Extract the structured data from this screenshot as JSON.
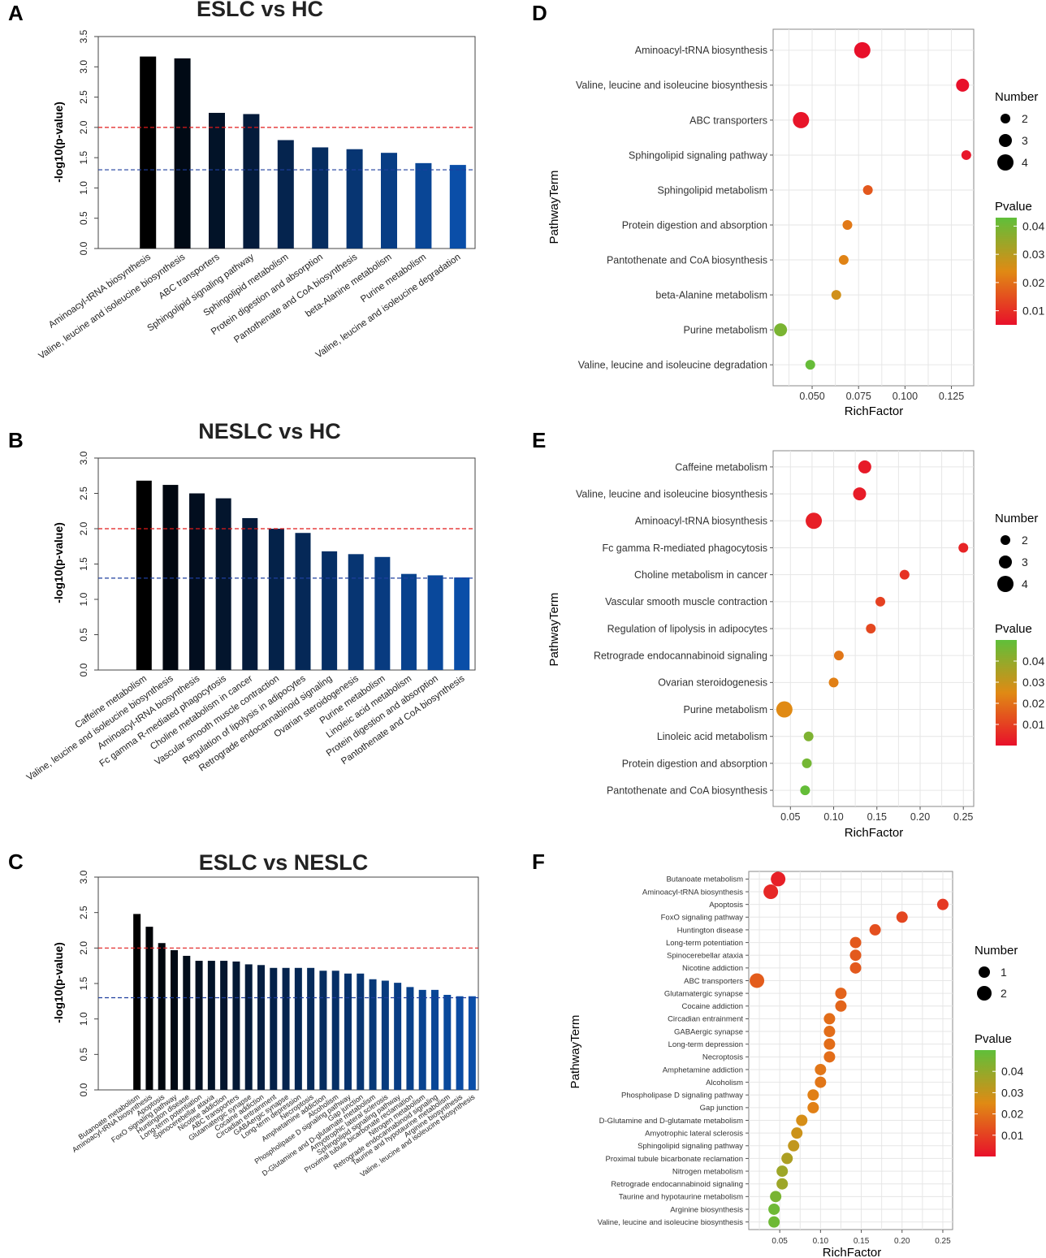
{
  "panels": [
    {
      "letter": "A",
      "chart_data": {
        "type": "bar",
        "title": "ESLC vs HC",
        "ylabel": "-log10(p-value)",
        "xlabel": "",
        "ylim": [
          0,
          3.5
        ],
        "yticks": [
          "0.0",
          "0.5",
          "1.0",
          "1.5",
          "2.0",
          "2.5",
          "3.0",
          "3.5"
        ],
        "threshold_lines": [
          {
            "value": 2.0,
            "color": "#e01b1b"
          },
          {
            "value": 1.3,
            "color": "#1f3f9e"
          }
        ],
        "categories": [
          "Aminoacyl-tRNA biosynthesis",
          "Valine, leucine and isoleucine biosynthesis",
          "ABC transporters",
          "Sphingolipid signaling pathway",
          "Sphingolipid metabolism",
          "Protein digestion and absorption",
          "Pantothenate and CoA biosynthesis",
          "beta-Alanine metabolism",
          "Purine metabolism",
          "Valine, leucine and isoleucine degradation"
        ],
        "values": [
          3.17,
          3.14,
          2.24,
          2.22,
          1.79,
          1.67,
          1.64,
          1.58,
          1.41,
          1.38
        ]
      }
    },
    {
      "letter": "B",
      "chart_data": {
        "type": "bar",
        "title": "NESLC vs HC",
        "ylabel": "-log10(p-value)",
        "xlabel": "",
        "ylim": [
          0,
          3.0
        ],
        "yticks": [
          "0.0",
          "0.5",
          "1.0",
          "1.5",
          "2.0",
          "2.5",
          "3.0"
        ],
        "threshold_lines": [
          {
            "value": 2.0,
            "color": "#e01b1b"
          },
          {
            "value": 1.3,
            "color": "#1f3f9e"
          }
        ],
        "categories": [
          "Caffeine metabolism",
          "Valine, leucine and isoleucine biosynthesis",
          "Aminoacyl-tRNA biosynthesis",
          "Fc gamma R-mediated phagocytosis",
          "Choline metabolism in cancer",
          "Vascular smooth muscle contraction",
          "Regulation of lipolysis in adipocytes",
          "Retrograde endocannabinoid signaling",
          "Ovarian steroidogenesis",
          "Purine metabolism",
          "Linoleic acid metabolism",
          "Protein digestion and absorption",
          "Pantothenate and CoA biosynthesis"
        ],
        "values": [
          2.68,
          2.62,
          2.5,
          2.43,
          2.15,
          2.0,
          1.94,
          1.68,
          1.64,
          1.6,
          1.36,
          1.34,
          1.31
        ]
      }
    },
    {
      "letter": "C",
      "chart_data": {
        "type": "bar",
        "title": "ESLC vs NESLC",
        "ylabel": "-log10(p-value)",
        "xlabel": "",
        "ylim": [
          0,
          3.0
        ],
        "yticks": [
          "0.0",
          "0.5",
          "1.0",
          "1.5",
          "2.0",
          "2.5",
          "3.0"
        ],
        "threshold_lines": [
          {
            "value": 2.0,
            "color": "#e01b1b"
          },
          {
            "value": 1.3,
            "color": "#1f3f9e"
          }
        ],
        "categories": [
          "Butanoate metabolism",
          "Aminoacyl-tRNA biosynthesis",
          "Apoptosis",
          "FoxO signaling pathway",
          "Huntington disease",
          "Long-term potentiation",
          "Spinocerebellar ataxia",
          "Nicotine addiction",
          "ABC transporters",
          "Glutamatergic synapse",
          "Cocaine addiction",
          "Circadian entrainment",
          "GABAergic synapse",
          "Long-term depression",
          "Necroptosis",
          "Amphetamine addiction",
          "Alcoholism",
          "Phospholipase D signaling pathway",
          "Gap junction",
          "D-Glutamine and D-glutamate metabolism",
          "Amyotrophic lateral sclerosis",
          "Sphingolipid signaling pathway",
          "Proximal tubule bicarbonate reclamation",
          "Nitrogen metabolism",
          "Retrograde endocannabinoid signaling",
          "Taurine and hypotaurine metabolism",
          "Arginine biosynthesis",
          "Valine, leucine and isoleucine biosynthesis"
        ],
        "values": [
          2.48,
          2.3,
          2.07,
          1.97,
          1.89,
          1.82,
          1.82,
          1.82,
          1.81,
          1.77,
          1.76,
          1.72,
          1.72,
          1.72,
          1.72,
          1.68,
          1.68,
          1.64,
          1.64,
          1.56,
          1.54,
          1.51,
          1.45,
          1.41,
          1.41,
          1.34,
          1.32,
          1.32
        ]
      }
    },
    {
      "letter": "D",
      "chart_data": {
        "type": "scatter",
        "xlabel": "RichFactor",
        "ylabel": "PathwayTerm",
        "xlim": [
          0.029,
          0.137
        ],
        "xticks": [
          0.05,
          0.075,
          0.1,
          0.125
        ],
        "xtick_labels": [
          "0.050",
          "0.075",
          "0.100",
          "0.125"
        ],
        "legend_size_title": "Number",
        "size_legend": [
          2,
          3,
          4
        ],
        "legend_color_title": "Pvalue",
        "pvalue_range": [
          0.005,
          0.043
        ],
        "color_ticks": [
          {
            "v": 0.04,
            "label": "0.04"
          },
          {
            "v": 0.03,
            "label": "0.03"
          },
          {
            "v": 0.02,
            "label": "0.02"
          },
          {
            "v": 0.01,
            "label": "0.01"
          }
        ],
        "terms": [
          "Aminoacyl-tRNA biosynthesis",
          "Valine, leucine and isoleucine biosynthesis",
          "ABC transporters",
          "Sphingolipid signaling pathway",
          "Sphingolipid metabolism",
          "Protein digestion and absorption",
          "Pantothenate and CoA biosynthesis",
          "beta-Alanine metabolism",
          "Purine metabolism",
          "Valine, leucine and isoleucine degradation"
        ],
        "richfactor": [
          0.077,
          0.131,
          0.044,
          0.133,
          0.08,
          0.069,
          0.067,
          0.063,
          0.033,
          0.049
        ],
        "number": [
          4,
          3,
          4,
          2,
          2,
          2,
          2,
          2,
          3,
          2
        ],
        "pvalue": [
          0.0007,
          0.0007,
          0.0058,
          0.006,
          0.0162,
          0.0214,
          0.0229,
          0.0263,
          0.039,
          0.042
        ]
      }
    },
    {
      "letter": "E",
      "chart_data": {
        "type": "scatter",
        "xlabel": "RichFactor",
        "ylabel": "PathwayTerm",
        "xlim": [
          0.03,
          0.262
        ],
        "xticks": [
          0.05,
          0.1,
          0.15,
          0.2,
          0.25
        ],
        "xtick_labels": [
          "0.05",
          "0.10",
          "0.15",
          "0.20",
          "0.25"
        ],
        "legend_size_title": "Number",
        "size_legend": [
          2,
          3,
          4
        ],
        "legend_color_title": "Pvalue",
        "pvalue_range": [
          0.0,
          0.05
        ],
        "color_ticks": [
          {
            "v": 0.04,
            "label": "0.04"
          },
          {
            "v": 0.03,
            "label": "0.03"
          },
          {
            "v": 0.02,
            "label": "0.02"
          },
          {
            "v": 0.01,
            "label": "0.01"
          }
        ],
        "terms": [
          "Caffeine metabolism",
          "Valine, leucine and isoleucine biosynthesis",
          "Aminoacyl-tRNA biosynthesis",
          "Fc gamma R-mediated phagocytosis",
          "Choline metabolism in cancer",
          "Vascular smooth muscle contraction",
          "Regulation of lipolysis in adipocytes",
          "Retrograde endocannabinoid signaling",
          "Ovarian steroidogenesis",
          "Purine metabolism",
          "Linoleic acid metabolism",
          "Protein digestion and absorption",
          "Pantothenate and CoA biosynthesis"
        ],
        "richfactor": [
          0.136,
          0.13,
          0.077,
          0.25,
          0.182,
          0.154,
          0.143,
          0.106,
          0.1,
          0.043,
          0.071,
          0.069,
          0.067
        ],
        "number": [
          3,
          3,
          4,
          2,
          2,
          2,
          2,
          2,
          2,
          4,
          2,
          2,
          2
        ],
        "pvalue": [
          0.002,
          0.0025,
          0.003,
          0.004,
          0.007,
          0.01,
          0.0115,
          0.021,
          0.023,
          0.025,
          0.044,
          0.046,
          0.049
        ]
      }
    },
    {
      "letter": "F",
      "chart_data": {
        "type": "scatter",
        "xlabel": "RichFactor",
        "ylabel": "PathwayTerm",
        "xlim": [
          0.012,
          0.262
        ],
        "xticks": [
          0.05,
          0.1,
          0.15,
          0.2,
          0.25
        ],
        "xtick_labels": [
          "0.05",
          "0.10",
          "0.15",
          "0.20",
          "0.25"
        ],
        "legend_size_title": "Number",
        "size_legend": [
          1,
          2
        ],
        "legend_color_title": "Pvalue",
        "pvalue_range": [
          0.0,
          0.05
        ],
        "color_ticks": [
          {
            "v": 0.04,
            "label": "0.04"
          },
          {
            "v": 0.03,
            "label": "0.03"
          },
          {
            "v": 0.02,
            "label": "0.02"
          },
          {
            "v": 0.01,
            "label": "0.01"
          }
        ],
        "terms": [
          "Butanoate metabolism",
          "Aminoacyl-tRNA biosynthesis",
          "Apoptosis",
          "FoxO signaling pathway",
          "Huntington disease",
          "Long-term potentiation",
          "Spinocerebellar ataxia",
          "Nicotine addiction",
          "ABC transporters",
          "Glutamatergic synapse",
          "Cocaine addiction",
          "Circadian entrainment",
          "GABAergic synapse",
          "Long-term depression",
          "Necroptosis",
          "Amphetamine addiction",
          "Alcoholism",
          "Phospholipase D signaling pathway",
          "Gap junction",
          "D-Glutamine and D-glutamate metabolism",
          "Amyotrophic lateral sclerosis",
          "Sphingolipid signaling pathway",
          "Proximal tubule bicarbonate reclamation",
          "Nitrogen metabolism",
          "Retrograde endocannabinoid signaling",
          "Taurine and hypotaurine metabolism",
          "Arginine biosynthesis",
          "Valine, leucine and isoleucine biosynthesis"
        ],
        "richfactor": [
          0.048,
          0.039,
          0.25,
          0.2,
          0.167,
          0.143,
          0.143,
          0.143,
          0.022,
          0.125,
          0.125,
          0.111,
          0.111,
          0.111,
          0.111,
          0.1,
          0.1,
          0.091,
          0.091,
          0.077,
          0.071,
          0.067,
          0.059,
          0.053,
          0.053,
          0.045,
          0.043,
          0.043
        ],
        "number": [
          2,
          2,
          1,
          1,
          1,
          1,
          1,
          1,
          2,
          1,
          1,
          1,
          1,
          1,
          1,
          1,
          1,
          1,
          1,
          1,
          1,
          1,
          1,
          1,
          1,
          1,
          1,
          1
        ],
        "pvalue": [
          0.003,
          0.005,
          0.0085,
          0.011,
          0.013,
          0.015,
          0.015,
          0.015,
          0.0155,
          0.017,
          0.0175,
          0.019,
          0.019,
          0.019,
          0.019,
          0.021,
          0.021,
          0.023,
          0.023,
          0.027,
          0.029,
          0.031,
          0.035,
          0.038,
          0.038,
          0.045,
          0.047,
          0.047
        ]
      }
    }
  ]
}
